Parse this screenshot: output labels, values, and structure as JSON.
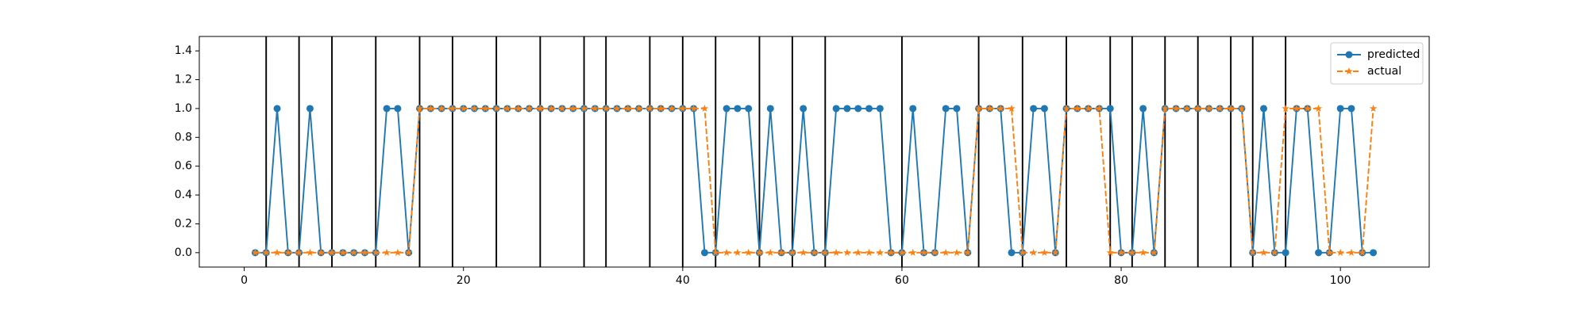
{
  "chart_data": {
    "type": "line",
    "x": [
      1,
      2,
      3,
      4,
      5,
      6,
      7,
      8,
      9,
      10,
      11,
      12,
      13,
      14,
      15,
      16,
      17,
      18,
      19,
      20,
      21,
      22,
      23,
      24,
      25,
      26,
      27,
      28,
      29,
      30,
      31,
      32,
      33,
      34,
      35,
      36,
      37,
      38,
      39,
      40,
      41,
      42,
      43,
      44,
      45,
      46,
      47,
      48,
      49,
      50,
      51,
      52,
      53,
      54,
      55,
      56,
      57,
      58,
      59,
      60,
      61,
      62,
      63,
      64,
      65,
      66,
      67,
      68,
      69,
      70,
      71,
      72,
      73,
      74,
      75,
      76,
      77,
      78,
      79,
      80,
      81,
      82,
      83,
      84,
      85,
      86,
      87,
      88,
      89,
      90,
      91,
      92,
      93,
      94,
      95,
      96,
      97,
      98,
      99,
      100,
      101,
      102,
      103
    ],
    "series": [
      {
        "name": "predicted",
        "color": "#1f77b4",
        "marker": "circle",
        "linestyle": "solid",
        "values": [
          0,
          0,
          1,
          0,
          0,
          1,
          0,
          0,
          0,
          0,
          0,
          0,
          1,
          1,
          0,
          1,
          1,
          1,
          1,
          1,
          1,
          1,
          1,
          1,
          1,
          1,
          1,
          1,
          1,
          1,
          1,
          1,
          1,
          1,
          1,
          1,
          1,
          1,
          1,
          1,
          1,
          0,
          0,
          1,
          1,
          1,
          0,
          1,
          0,
          0,
          1,
          0,
          0,
          1,
          1,
          1,
          1,
          1,
          0,
          0,
          1,
          0,
          0,
          1,
          1,
          0,
          1,
          1,
          1,
          0,
          0,
          1,
          1,
          0,
          1,
          1,
          1,
          1,
          1,
          0,
          0,
          1,
          0,
          1,
          1,
          1,
          1,
          1,
          1,
          1,
          1,
          0,
          1,
          0,
          0,
          1,
          1,
          0,
          0,
          1,
          1,
          0,
          0
        ]
      },
      {
        "name": "actual",
        "color": "#ff7f0e",
        "marker": "star",
        "linestyle": "dashed",
        "values": [
          0,
          0,
          0,
          0,
          0,
          0,
          0,
          0,
          0,
          0,
          0,
          0,
          0,
          0,
          0,
          1,
          1,
          1,
          1,
          1,
          1,
          1,
          1,
          1,
          1,
          1,
          1,
          1,
          1,
          1,
          1,
          1,
          1,
          1,
          1,
          1,
          1,
          1,
          1,
          1,
          1,
          1,
          0,
          0,
          0,
          0,
          0,
          0,
          0,
          0,
          0,
          0,
          0,
          0,
          0,
          0,
          0,
          0,
          0,
          0,
          0,
          0,
          0,
          0,
          0,
          0,
          1,
          1,
          1,
          1,
          0,
          0,
          0,
          0,
          1,
          1,
          1,
          1,
          0,
          0,
          0,
          0,
          0,
          1,
          1,
          1,
          1,
          1,
          1,
          1,
          1,
          0,
          0,
          0,
          1,
          1,
          1,
          1,
          0,
          0,
          0,
          0,
          1
        ]
      }
    ],
    "vlines": [
      2,
      5,
      8,
      12,
      16,
      19,
      23,
      27,
      31,
      33,
      37,
      40,
      43,
      47,
      50,
      53,
      60,
      67,
      71,
      75,
      79,
      81,
      84,
      87,
      90,
      92,
      95
    ],
    "vline_color": "#000000",
    "xlim": [
      -4.1,
      108.1
    ],
    "xticks": [
      0,
      20,
      40,
      60,
      80,
      100
    ],
    "ylim": [
      -0.1,
      1.5
    ],
    "yticks": [
      {
        "value": 0,
        "label": "0.0"
      },
      {
        "value": 0.2,
        "label": "0.2"
      },
      {
        "value": 0.4,
        "label": "0.4"
      },
      {
        "value": 0.6,
        "label": "0.6"
      },
      {
        "value": 0.8,
        "label": "0.8"
      },
      {
        "value": 1,
        "label": "1.0"
      },
      {
        "value": 1.2,
        "label": "1.2"
      },
      {
        "value": 1.4,
        "label": "1.4"
      }
    ],
    "legend": "upper right",
    "grid": false
  }
}
